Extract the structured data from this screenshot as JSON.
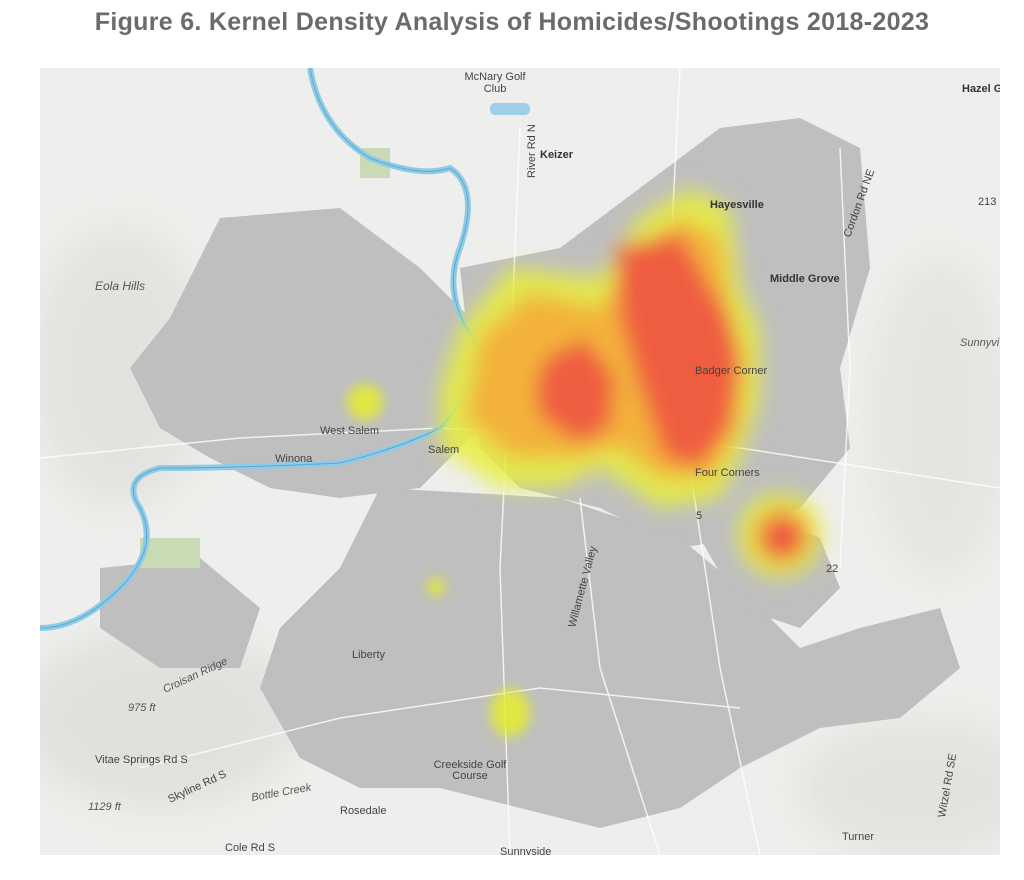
{
  "title": "Figure 6. Kernel Density Analysis of Homicides/Shootings 2018-2023",
  "labels": [
    "McNary Golf",
    "Club",
    "Keizer",
    "River Rd N",
    "Hazel G",
    "Hayesville",
    "213",
    "Cordon Rd NE",
    "Eola Hills",
    "Middle Grove",
    "Sunnyvi",
    "Badger Corner",
    "West Salem",
    "Winona",
    "Salem",
    "Four Corners",
    "5",
    "22",
    "Liberty",
    "Croisan Ridge",
    "Willamette Valley",
    "975 ft",
    "Vitae Springs Rd S",
    "Skyline Rd S",
    "1129 ft",
    "Bottle Creek",
    "Rosedale",
    "Creekside Golf",
    "Course",
    "Cole Rd S",
    "Sunnyside",
    "Turner",
    "Witzel Rd SE"
  ]
}
